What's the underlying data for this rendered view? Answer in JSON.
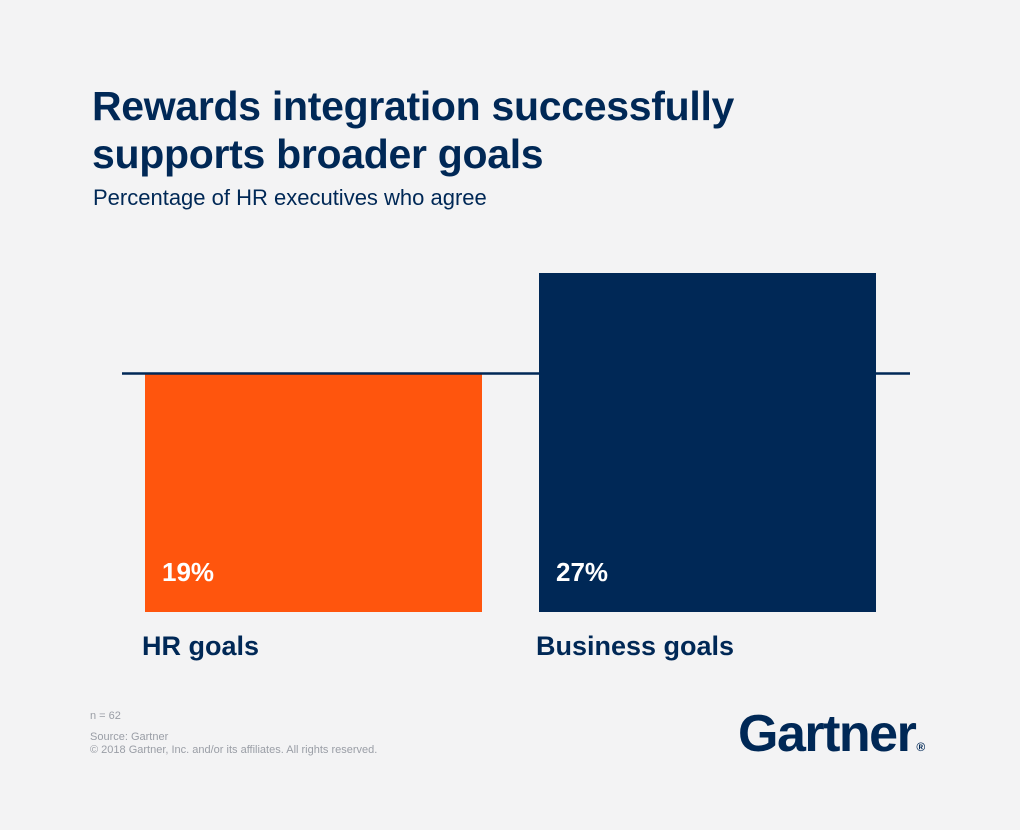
{
  "chart_data": {
    "type": "bar",
    "title": "Rewards integration successfully supports broader goals",
    "subtitle": "Percentage of HR executives who agree",
    "categories": [
      "HR goals",
      "Business goals"
    ],
    "values": [
      19,
      27
    ],
    "value_labels": [
      "19%",
      "27%"
    ],
    "colors": [
      "#ff550d",
      "#002856"
    ],
    "notes": [
      "n = 62",
      "Source: Gartner",
      "© 2018 Gartner, Inc. and/or its affiliates. All rights reserved."
    ],
    "logo": "Gartner",
    "logo_mark": "®"
  }
}
